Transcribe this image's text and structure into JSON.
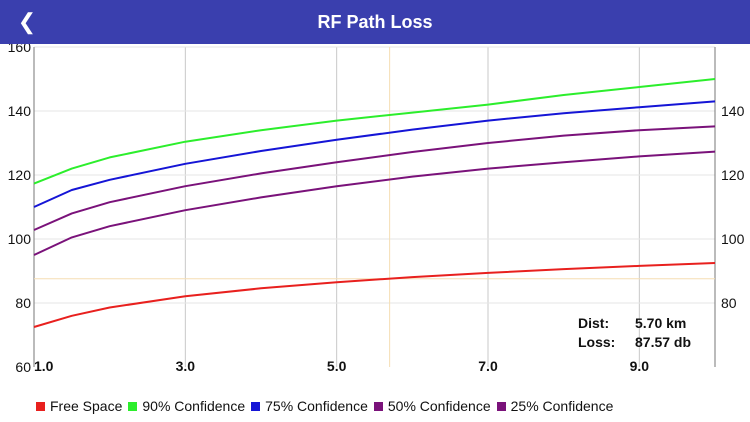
{
  "header": {
    "title": "RF Path Loss",
    "back_icon": "chevron-left-icon",
    "color": "#3a3fae"
  },
  "readout": {
    "dist_label": "Dist:",
    "dist_value": "5.70 km",
    "loss_label": "Loss:",
    "loss_value": "87.57 db"
  },
  "chart_data": {
    "type": "line",
    "xlim": [
      1.0,
      10.0
    ],
    "ylim": [
      60,
      160
    ],
    "x_ticks": [
      "1.0",
      "3.0",
      "5.0",
      "7.0",
      "9.0"
    ],
    "y_ticks_left": [
      "60",
      "80",
      "100",
      "120",
      "140",
      "160"
    ],
    "y_ticks_right": [
      "80",
      "100",
      "120",
      "140"
    ],
    "grid": true,
    "legend": "bottom",
    "cursor": {
      "x": 5.7,
      "y": 87.57,
      "color": "#f5deb3"
    },
    "x": [
      1.0,
      1.5,
      2.0,
      3.0,
      4.0,
      5.0,
      6.0,
      7.0,
      8.0,
      9.0,
      10.0
    ],
    "series": [
      {
        "name": "Free Space",
        "color": "#e8201e",
        "values": [
          72.5,
          76.0,
          78.6,
          82.1,
          84.6,
          86.5,
          88.1,
          89.4,
          90.6,
          91.6,
          92.5
        ]
      },
      {
        "name": "90% Confidence",
        "color": "#2cee2c",
        "values": [
          117.3,
          122.0,
          125.5,
          130.4,
          134.0,
          137.0,
          139.5,
          142.0,
          145.0,
          147.5,
          150.0
        ]
      },
      {
        "name": "75% Confidence",
        "color": "#1515d6",
        "values": [
          110.0,
          115.3,
          118.5,
          123.5,
          127.5,
          131.0,
          134.2,
          137.0,
          139.3,
          141.2,
          143.0
        ]
      },
      {
        "name": "50% Confidence",
        "color": "#7a127a",
        "values": [
          102.8,
          108.0,
          111.5,
          116.5,
          120.5,
          124.0,
          127.2,
          130.0,
          132.3,
          134.0,
          135.2
        ]
      },
      {
        "name": "25% Confidence",
        "color": "#7a127a",
        "values": [
          95.0,
          100.5,
          104.0,
          109.0,
          113.0,
          116.5,
          119.5,
          122.0,
          124.0,
          125.8,
          127.3
        ]
      }
    ]
  }
}
